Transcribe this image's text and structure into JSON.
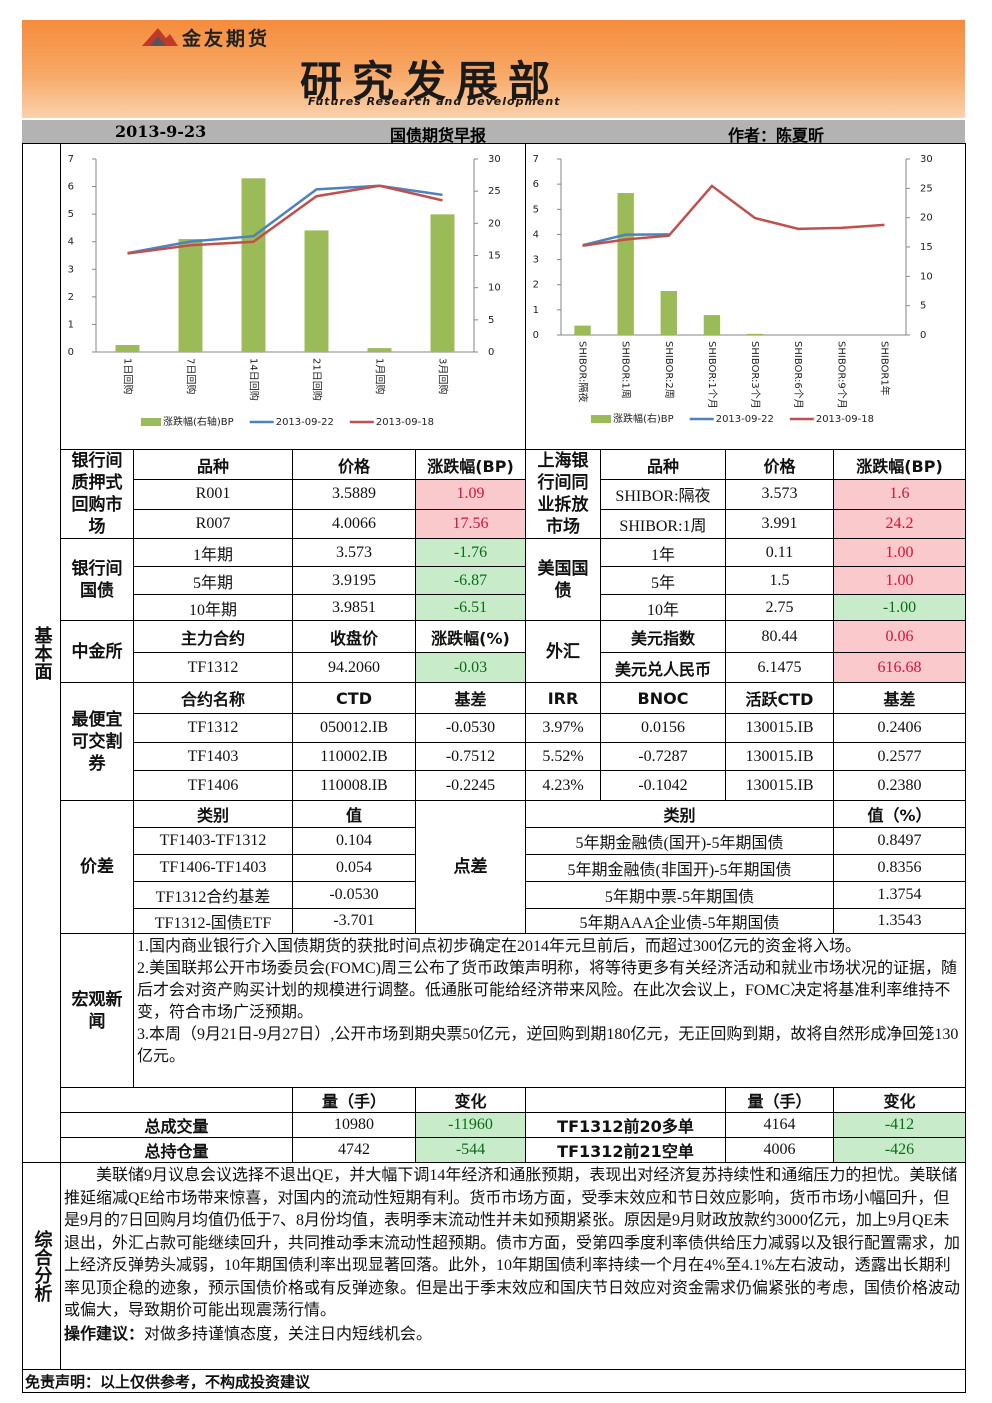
{
  "header": {
    "company": "金友期货",
    "department": "研究发展部",
    "department_en": "Futures Research and Development",
    "date": "2013-9-23",
    "report": "国债期货早报",
    "author": "作者：陈夏昕"
  },
  "fundamentals_label": "基本面",
  "chart_data": [
    {
      "type": "combo",
      "categories": [
        "1日回购",
        "7日回购",
        "14日回购",
        "21日回购",
        "1月回购",
        "3月回购"
      ],
      "series": [
        {
          "name": "涨跌幅(右轴)BP",
          "type": "bar",
          "axis": "y2",
          "color": "#9bbb59",
          "values": [
            1.09,
            17.56,
            27.0,
            18.9,
            0.6,
            21.4
          ]
        },
        {
          "name": "2013-09-22",
          "type": "line",
          "color": "#4f81bd",
          "values": [
            3.5889,
            4.0066,
            4.2,
            5.9,
            6.03,
            5.7
          ]
        },
        {
          "name": "2013-09-18",
          "type": "line",
          "color": "#c0504d",
          "values": [
            3.57,
            3.87,
            4.0,
            5.65,
            6.03,
            5.5
          ]
        }
      ],
      "ylim": [
        0,
        7
      ],
      "yticks": [
        0,
        1,
        2,
        3,
        4,
        5,
        6,
        7
      ],
      "y2lim": [
        0,
        30
      ],
      "y2ticks": [
        0,
        5,
        10,
        15,
        20,
        25,
        30
      ],
      "grid": false,
      "legend": "bottom"
    },
    {
      "type": "combo",
      "categories": [
        "SHIBOR:隔夜",
        "SHIBOR:1周",
        "SHIBOR:2周",
        "SHIBOR:1个月",
        "SHIBOR:3个月",
        "SHIBOR:6个月",
        "SHIBOR:9个月",
        "SHIBOR1年"
      ],
      "series": [
        {
          "name": "涨跌幅(右)BP",
          "type": "bar",
          "axis": "y2",
          "color": "#9bbb59",
          "values": [
            1.6,
            24.2,
            7.5,
            3.4,
            0.2,
            0,
            0,
            0
          ]
        },
        {
          "name": "2013-09-22",
          "type": "line",
          "color": "#4f81bd",
          "values": [
            3.573,
            3.991,
            4.0,
            null,
            null,
            null,
            null,
            null
          ]
        },
        {
          "name": "2013-09-18",
          "type": "line",
          "color": "#c0504d",
          "values": [
            3.55,
            3.8,
            3.95,
            5.93,
            4.65,
            4.22,
            4.26,
            4.38
          ]
        }
      ],
      "ylim": [
        0,
        7
      ],
      "yticks": [
        0,
        1,
        2,
        3,
        4,
        5,
        6,
        7
      ],
      "y2lim": [
        0,
        30
      ],
      "y2ticks": [
        0,
        5,
        10,
        15,
        20,
        25,
        30
      ],
      "grid": false,
      "legend": "bottom"
    }
  ],
  "repo": {
    "label": "银行间质押式回购市场",
    "header": [
      "品种",
      "价格",
      "涨跌幅(BP)"
    ],
    "rows": [
      [
        "R001",
        "3.5889",
        "1.09"
      ],
      [
        "R007",
        "4.0066",
        "17.56"
      ]
    ]
  },
  "shibor": {
    "label": "上海银行间同业拆放市场",
    "header": [
      "品种",
      "价格",
      "涨跌幅(BP)"
    ],
    "rows": [
      [
        "SHIBOR:隔夜",
        "3.573",
        "1.6"
      ],
      [
        "SHIBOR:1周",
        "3.991",
        "24.2"
      ]
    ]
  },
  "cn_bonds": {
    "label": "银行间国债",
    "rows": [
      [
        "1年期",
        "3.573",
        "-1.76"
      ],
      [
        "5年期",
        "3.9195",
        "-6.87"
      ],
      [
        "10年期",
        "3.9851",
        "-6.51"
      ]
    ]
  },
  "us_bonds": {
    "label": "美国国债",
    "rows": [
      [
        "1年",
        "0.11",
        "1.00"
      ],
      [
        "5年",
        "1.5",
        "1.00"
      ],
      [
        "10年",
        "2.75",
        "-1.00"
      ]
    ]
  },
  "cffex": {
    "label": "中金所",
    "header": [
      "主力合约",
      "收盘价",
      "涨跌幅(%)"
    ],
    "rows": [
      [
        "TF1312",
        "94.2060",
        "-0.03"
      ]
    ]
  },
  "fx": {
    "label": "外汇",
    "rows": [
      [
        "美元指数",
        "80.44",
        "0.06"
      ],
      [
        "美元兑人民币",
        "6.1475",
        "616.68"
      ]
    ]
  },
  "ctd": {
    "label": "最便宜可交割券",
    "header": [
      "合约名称",
      "CTD",
      "基差",
      "IRR",
      "BNOC",
      "活跃CTD",
      "基差"
    ],
    "rows": [
      [
        "TF1312",
        "050012.IB",
        "-0.0530",
        "3.97%",
        "0.0156",
        "130015.IB",
        "0.2406"
      ],
      [
        "TF1403",
        "110002.IB",
        "-0.7512",
        "5.52%",
        "-0.7287",
        "130015.IB",
        "0.2577"
      ],
      [
        "TF1406",
        "110008.IB",
        "-0.2245",
        "4.23%",
        "-0.1042",
        "130015.IB",
        "0.2380"
      ]
    ]
  },
  "spread": {
    "label": "价差",
    "header": [
      "类别",
      "值"
    ],
    "rows": [
      [
        "TF1403-TF1312",
        "0.104"
      ],
      [
        "TF1406-TF1403",
        "0.054"
      ],
      [
        "TF1312合约基差",
        "-0.0530"
      ],
      [
        "TF1312-国债ETF",
        "-3.701"
      ]
    ]
  },
  "point_spread": {
    "label": "点差",
    "header": [
      "类别",
      "值（%）"
    ],
    "rows": [
      [
        "5年期金融债(国开)-5年期国债",
        "0.8497"
      ],
      [
        "5年期金融债(非国开)-5年期国债",
        "0.8356"
      ],
      [
        "5年期中票-5年期国债",
        "1.3754"
      ],
      [
        "5年期AAA企业债-5年期国债",
        "1.3543"
      ]
    ]
  },
  "macro": {
    "label": "宏观新闻",
    "paragraphs": [
      "1.国内商业银行介入国债期货的获批时间点初步确定在2014年元旦前后，而超过300亿元的资金将入场。",
      "2.美国联邦公开市场委员会(FOMC)周三公布了货币政策声明称，将等待更多有关经济活动和就业市场状况的证据，随后才会对资产购买计划的规模进行调整。低通胀可能给经济带来风险。在此次会议上，FOMC决定将基准利率维持不变，符合市场广泛预期。",
      "3.本周（9月21日-9月27日）,公开市场到期央票50亿元，逆回购到期180亿元，无正回购到期，故将自然形成净回笼130亿元。"
    ]
  },
  "volume": {
    "header": [
      "量（手）",
      "变化"
    ],
    "rows": [
      [
        "总成交量",
        "10980",
        "-11960"
      ],
      [
        "总持仓量",
        "4742",
        "-544"
      ]
    ]
  },
  "positions": {
    "header": [
      "量（手）",
      "变化"
    ],
    "rows": [
      [
        "TF1312前20多单",
        "4164",
        "-412"
      ],
      [
        "TF1312前21空单",
        "4006",
        "-426"
      ]
    ]
  },
  "analysis": {
    "label": "综合分析",
    "text": "美联储9月议息会议选择不退出QE，并大幅下调14年经济和通胀预期，表现出对经济复苏持续性和通缩压力的担忧。美联储推延缩减QE给市场带来惊喜，对国内的流动性短期有利。货币市场方面，受季末效应和节日效应影响，货币市场小幅回升，但是9月的7日回购月均值仍低于7、8月份均值，表明季末流动性并未如预期紧张。原因是9月财政放款约3000亿元，加上9月QE未退出，外汇占款可能继续回升，共同推动季末流动性超预期。债市方面，受第四季度利率债供给压力减弱以及银行配置需求，加上经济反弹势头减弱，10年期国债利率出现显著回落。此外，10年期国债利率持续一个月在4%至4.1%左右波动，透露出长期利率见顶企稳的迹象，预示国债价格或有反弹迹象。但是出于季末效应和国庆节日效应对资金需求仍偏紧张的考虑，国债价格波动或偏大，导致期价可能出现震荡行情。",
    "advice_label": "操作建议：",
    "advice": "对做多持谨慎态度，关注日内短线机会。"
  },
  "disclaimer": "免责声明：以上仅供参考，不构成投资建议"
}
